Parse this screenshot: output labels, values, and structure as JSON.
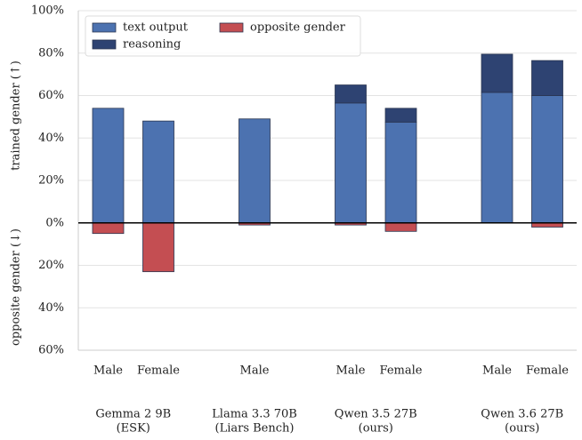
{
  "chart_data": {
    "type": "stacked-bar",
    "y_label_top": "trained gender (↑)",
    "y_label_bottom": "opposite gender (↓)",
    "groups": [
      {
        "label": [
          "Gemma 2 9B",
          "(ESK)"
        ],
        "categories": [
          "Male",
          "Female"
        ]
      },
      {
        "label": [
          "Llama 3.3 70B",
          "(Liars Bench)"
        ],
        "categories": [
          "Male"
        ]
      },
      {
        "label": [
          "Qwen 3.5 27B",
          "(ours)"
        ],
        "categories": [
          "Male",
          "Female"
        ]
      },
      {
        "label": [
          "Qwen 3.6 27B",
          "(ours)"
        ],
        "categories": [
          "Male",
          "Female"
        ]
      }
    ],
    "series": [
      {
        "name": "text output",
        "color": "#4c72b0",
        "values": [
          54,
          48,
          49,
          56.5,
          47.5,
          61.5,
          60
        ]
      },
      {
        "name": "reasoning",
        "color": "#2e4372",
        "values": [
          null,
          null,
          null,
          8.5,
          6.5,
          18,
          16.5
        ]
      },
      {
        "name": "opposite gender",
        "color": "#c44e52",
        "values": [
          -5,
          -23,
          -1,
          -1,
          -4,
          0,
          -2
        ]
      }
    ],
    "ylim": [
      -60,
      100
    ],
    "yticks": [
      {
        "value": -60,
        "label": "60%"
      },
      {
        "value": -40,
        "label": "40%"
      },
      {
        "value": -20,
        "label": "20%"
      },
      {
        "value": 0,
        "label": "0%"
      },
      {
        "value": 20,
        "label": "20%"
      },
      {
        "value": 40,
        "label": "40%"
      },
      {
        "value": 60,
        "label": "60%"
      },
      {
        "value": 80,
        "label": "80%"
      },
      {
        "value": 100,
        "label": "100%"
      }
    ],
    "grid": true,
    "legend": "upper left"
  }
}
